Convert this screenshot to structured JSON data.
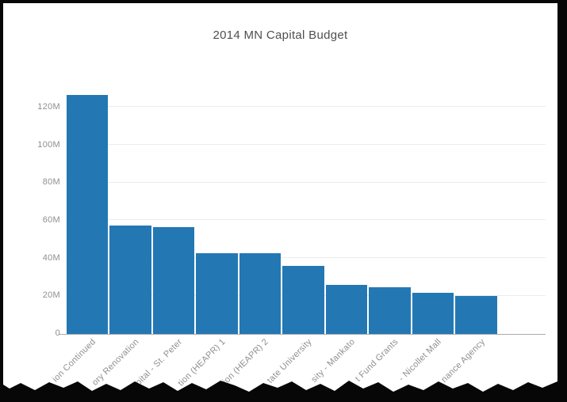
{
  "chart_data": {
    "type": "bar",
    "title": "2014 MN Capital Budget",
    "categories": [
      "ion Continued",
      "ory Renovation",
      "pital - St. Peter",
      "tion (HEAPR) 1",
      "tion (HEAPR) 2",
      "tate University",
      "sity - Mankato",
      "t Fund Grants",
      "- Nicollet Mall",
      "nance Agency"
    ],
    "values_millions": [
      126.3,
      57.3,
      56.3,
      42.5,
      42.5,
      36.0,
      25.8,
      24.4,
      21.5,
      20.0
    ],
    "ytick_labels": [
      "0",
      "20M",
      "40M",
      "60M",
      "80M",
      "100M",
      "120M"
    ],
    "ytick_values": [
      0,
      20,
      40,
      60,
      80,
      100,
      120
    ],
    "ylim": [
      0,
      133
    ],
    "xlabel": "",
    "ylabel": "",
    "grid": true,
    "legend": "none",
    "x_labels_rotated_45": true,
    "x_labels_truncated_by_torn_edge": true,
    "bar_color": "#2378b4",
    "colors": {
      "background": "#ffffff",
      "frame": "#070707",
      "gridline": "#ececec",
      "axis_line": "#ababab",
      "tick_text": "#8f8f8f",
      "title_text": "#4f4f4f"
    }
  }
}
